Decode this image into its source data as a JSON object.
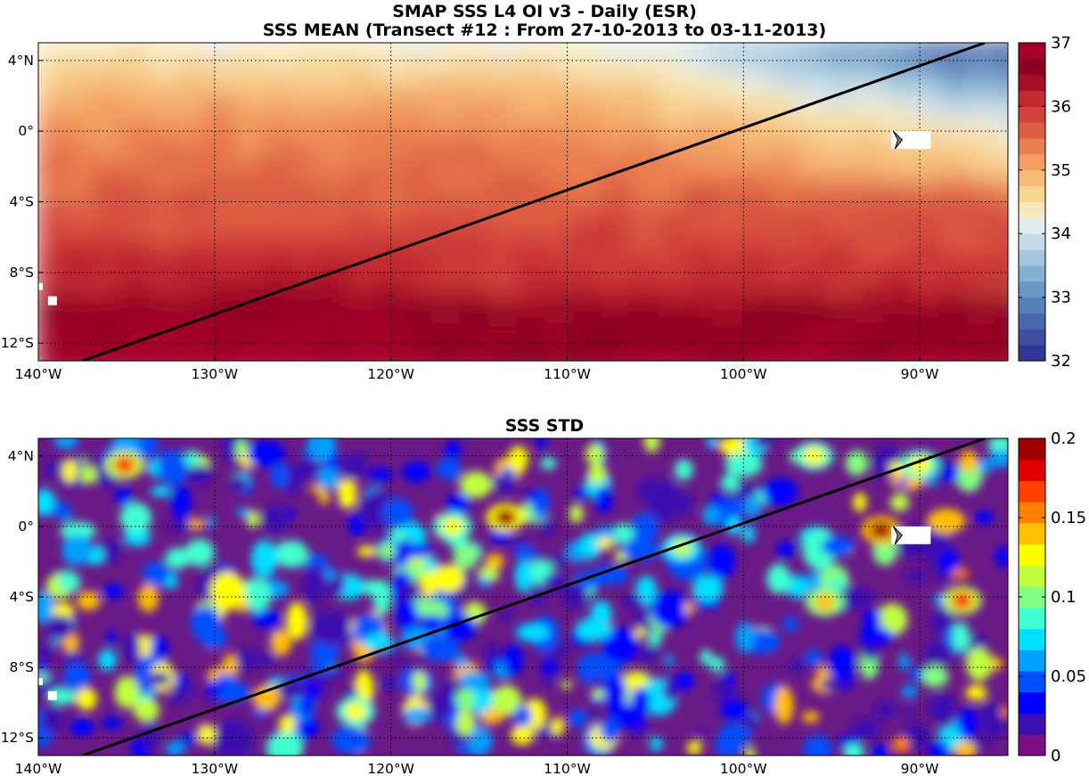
{
  "titles": {
    "line1": "SMAP SSS L4 OI v3 - Daily (ESR)",
    "line2": "SSS MEAN (Transect #12 : From 27-10-2013 to 03-11-2013)",
    "std": "SSS STD"
  },
  "map": {
    "lon_range": [
      -140,
      -85
    ],
    "lat_range": [
      -13,
      5
    ],
    "lon_ticks": [
      {
        "value": -140,
        "label": "140°W"
      },
      {
        "value": -130,
        "label": "130°W"
      },
      {
        "value": -120,
        "label": "120°W"
      },
      {
        "value": -110,
        "label": "110°W"
      },
      {
        "value": -100,
        "label": "100°W"
      },
      {
        "value": -90,
        "label": "90°W"
      }
    ],
    "lat_ticks": [
      {
        "value": 4,
        "label": "4°N"
      },
      {
        "value": 0,
        "label": "0°"
      },
      {
        "value": -4,
        "label": "4°S"
      },
      {
        "value": -8,
        "label": "8°S"
      },
      {
        "value": -12,
        "label": "12°S"
      }
    ],
    "transect": {
      "start": {
        "lon": -137.5,
        "lat": -13
      },
      "end": {
        "lon": -86.3,
        "lat": 5
      }
    },
    "land_marker": {
      "lon": -91.2,
      "lat": -0.5
    },
    "grid": "dotted"
  },
  "colorbars": {
    "mean": {
      "min": 32,
      "max": 37,
      "ticks": [
        {
          "value": 32,
          "label": "32"
        },
        {
          "value": 33,
          "label": "33"
        },
        {
          "value": 34,
          "label": "34"
        },
        {
          "value": 35,
          "label": "35"
        },
        {
          "value": 36,
          "label": "36"
        },
        {
          "value": 37,
          "label": "37"
        }
      ],
      "colors": [
        "#313695",
        "#3f4f9f",
        "#4a67ab",
        "#5680b8",
        "#6a98c5",
        "#85b0d2",
        "#a3c6de",
        "#c3dce8",
        "#dfecec",
        "#f6e8bd",
        "#f7d494",
        "#f6bb77",
        "#f29e62",
        "#ea7f4f",
        "#dd5f43",
        "#d1433a",
        "#c22a30",
        "#a90d26",
        "#8c0021",
        "#a50026"
      ]
    },
    "std": {
      "min": 0,
      "max": 0.2,
      "ticks": [
        {
          "value": 0,
          "label": "0"
        },
        {
          "value": 0.05,
          "label": "0.05"
        },
        {
          "value": 0.1,
          "label": "0.1"
        },
        {
          "value": 0.15,
          "label": "0.15"
        },
        {
          "value": 0.2,
          "label": "0.2"
        }
      ],
      "colors": [
        "#7a0f82",
        "#3c0fb0",
        "#0000ff",
        "#0050ff",
        "#00a0ff",
        "#00e0ff",
        "#40ffd0",
        "#80ff80",
        "#c0ff40",
        "#ffff00",
        "#ffc000",
        "#ff8000",
        "#ff4000",
        "#e00000",
        "#a00000"
      ]
    }
  }
}
